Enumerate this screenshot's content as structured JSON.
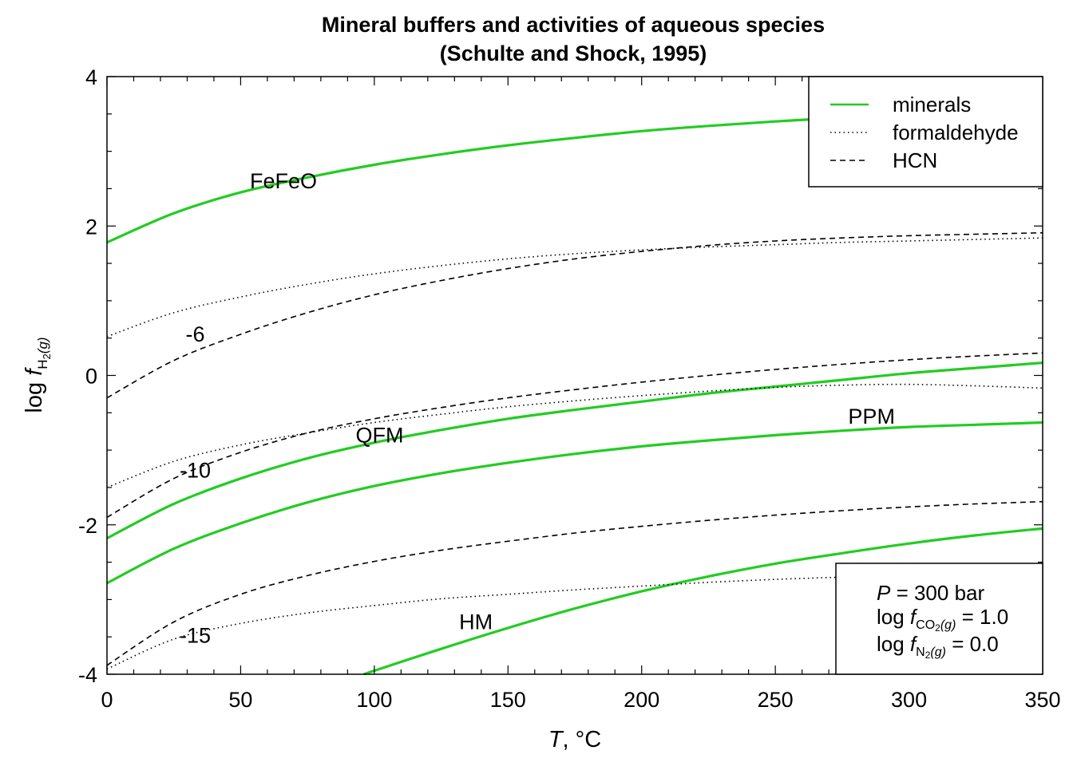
{
  "chart_data": {
    "type": "line",
    "title": "Mineral buffers and activities of aqueous species",
    "subtitle": "(Schulte and Shock, 1995)",
    "xlabel": {
      "italic": "T",
      "rest": ", °C"
    },
    "ylabel": {
      "prefix": "log ",
      "f": "f",
      "sub": "H",
      "sub2": "2",
      "paren": "(g)"
    },
    "xlim": [
      0,
      350
    ],
    "ylim": [
      -4,
      4
    ],
    "x_ticks": [
      "0",
      "50",
      "100",
      "150",
      "200",
      "250",
      "300",
      "350"
    ],
    "y_ticks": [
      "-4",
      "-2",
      "0",
      "2",
      "4"
    ],
    "grid": false,
    "legend_position": "top-right",
    "legend": [
      {
        "label": "minerals",
        "style": "solid",
        "color": "#22cc22"
      },
      {
        "label": "formaldehyde",
        "style": "dotted",
        "color": "#000000"
      },
      {
        "label": "HCN",
        "style": "dashed",
        "color": "#000000"
      }
    ],
    "conditions": {
      "line1": {
        "var": "P",
        "eq": " = 300 bar"
      },
      "line2": {
        "prefix": "log ",
        "f": "f",
        "sub": "CO",
        "sub2": "2",
        "paren": "(g)",
        "eq": " = 1.0"
      },
      "line3": {
        "prefix": "log ",
        "f": "f",
        "sub": "N",
        "sub2": "2",
        "paren": "(g)",
        "eq": " = 0.0"
      }
    },
    "series": [
      {
        "name": "FeFeO",
        "group": "minerals",
        "x": [
          0,
          25,
          50,
          75,
          100,
          125,
          150,
          175,
          200,
          225,
          250,
          275
        ],
        "y": [
          1.78,
          2.17,
          2.45,
          2.65,
          2.82,
          2.96,
          3.08,
          3.18,
          3.27,
          3.34,
          3.4,
          3.45
        ]
      },
      {
        "name": "QFM",
        "group": "minerals",
        "x": [
          0,
          25,
          50,
          75,
          100,
          125,
          150,
          175,
          200,
          225,
          250,
          275,
          300,
          325,
          350
        ],
        "y": [
          -2.18,
          -1.72,
          -1.38,
          -1.11,
          -0.9,
          -0.73,
          -0.58,
          -0.46,
          -0.35,
          -0.24,
          -0.15,
          -0.06,
          0.03,
          0.1,
          0.17
        ]
      },
      {
        "name": "PPM",
        "group": "minerals",
        "x": [
          0,
          25,
          50,
          75,
          100,
          125,
          150,
          175,
          200,
          225,
          250,
          275,
          300,
          325,
          350
        ],
        "y": [
          -2.78,
          -2.32,
          -1.98,
          -1.7,
          -1.48,
          -1.31,
          -1.17,
          -1.05,
          -0.95,
          -0.87,
          -0.8,
          -0.74,
          -0.69,
          -0.66,
          -0.63
        ]
      },
      {
        "name": "HM",
        "group": "minerals",
        "x": [
          96,
          125,
          150,
          175,
          200,
          225,
          250,
          275,
          300,
          325,
          350
        ],
        "y": [
          -4.0,
          -3.66,
          -3.38,
          -3.12,
          -2.89,
          -2.69,
          -2.52,
          -2.38,
          -2.25,
          -2.14,
          -2.05
        ]
      },
      {
        "name": "-6",
        "group": "formaldehyde",
        "x": [
          0,
          25,
          50,
          75,
          100,
          125,
          150,
          175,
          200,
          225,
          250,
          275,
          300,
          325,
          350
        ],
        "y": [
          0.52,
          0.84,
          1.05,
          1.22,
          1.36,
          1.47,
          1.56,
          1.63,
          1.68,
          1.72,
          1.75,
          1.78,
          1.8,
          1.82,
          1.84
        ]
      },
      {
        "name": "-10",
        "group": "formaldehyde",
        "x": [
          0,
          25,
          50,
          75,
          100,
          125,
          150,
          175,
          200,
          225,
          250,
          275,
          300,
          325,
          350
        ],
        "y": [
          -1.5,
          -1.15,
          -0.93,
          -0.77,
          -0.63,
          -0.52,
          -0.42,
          -0.34,
          -0.27,
          -0.21,
          -0.16,
          -0.13,
          -0.12,
          -0.14,
          -0.17
        ]
      },
      {
        "name": "-15",
        "group": "formaldehyde",
        "x": [
          0,
          25,
          50,
          75,
          100,
          125,
          150,
          175,
          200,
          225,
          250,
          275,
          300,
          325,
          350
        ],
        "y": [
          -3.93,
          -3.53,
          -3.32,
          -3.18,
          -3.08,
          -2.99,
          -2.93,
          -2.87,
          -2.82,
          -2.77,
          -2.73,
          -2.7,
          -2.67,
          -2.64,
          -2.62
        ]
      },
      {
        "name": "-6",
        "group": "HCN",
        "x": [
          0,
          25,
          50,
          75,
          100,
          125,
          150,
          175,
          200,
          225,
          250,
          275,
          300,
          325,
          350
        ],
        "y": [
          -0.3,
          0.2,
          0.55,
          0.84,
          1.08,
          1.27,
          1.43,
          1.56,
          1.66,
          1.74,
          1.8,
          1.84,
          1.87,
          1.89,
          1.91
        ]
      },
      {
        "name": "-10",
        "group": "HCN",
        "x": [
          0,
          25,
          50,
          75,
          100,
          125,
          150,
          175,
          200,
          225,
          250,
          275,
          300,
          325,
          350
        ],
        "y": [
          -1.9,
          -1.38,
          -1.03,
          -0.77,
          -0.58,
          -0.43,
          -0.3,
          -0.19,
          -0.09,
          0.0,
          0.08,
          0.15,
          0.21,
          0.26,
          0.3
        ]
      },
      {
        "name": "-15",
        "group": "HCN",
        "x": [
          0,
          25,
          50,
          75,
          100,
          125,
          150,
          175,
          200,
          225,
          250,
          275,
          300,
          325,
          350
        ],
        "y": [
          -3.88,
          -3.3,
          -2.93,
          -2.68,
          -2.49,
          -2.34,
          -2.22,
          -2.11,
          -2.02,
          -1.94,
          -1.87,
          -1.81,
          -1.76,
          -1.72,
          -1.69
        ]
      }
    ],
    "annotations": [
      {
        "text": "FeFeO",
        "x": 66,
        "y": 2.6
      },
      {
        "text": "QFM",
        "x": 102,
        "y": -0.8
      },
      {
        "text": "PPM",
        "x": 286,
        "y": -0.55
      },
      {
        "text": "HM",
        "x": 138,
        "y": -3.3
      },
      {
        "text": "-6",
        "x": 33,
        "y": 0.55
      },
      {
        "text": "-10",
        "x": 33,
        "y": -1.27
      },
      {
        "text": "-15",
        "x": 33,
        "y": -3.48
      }
    ]
  }
}
